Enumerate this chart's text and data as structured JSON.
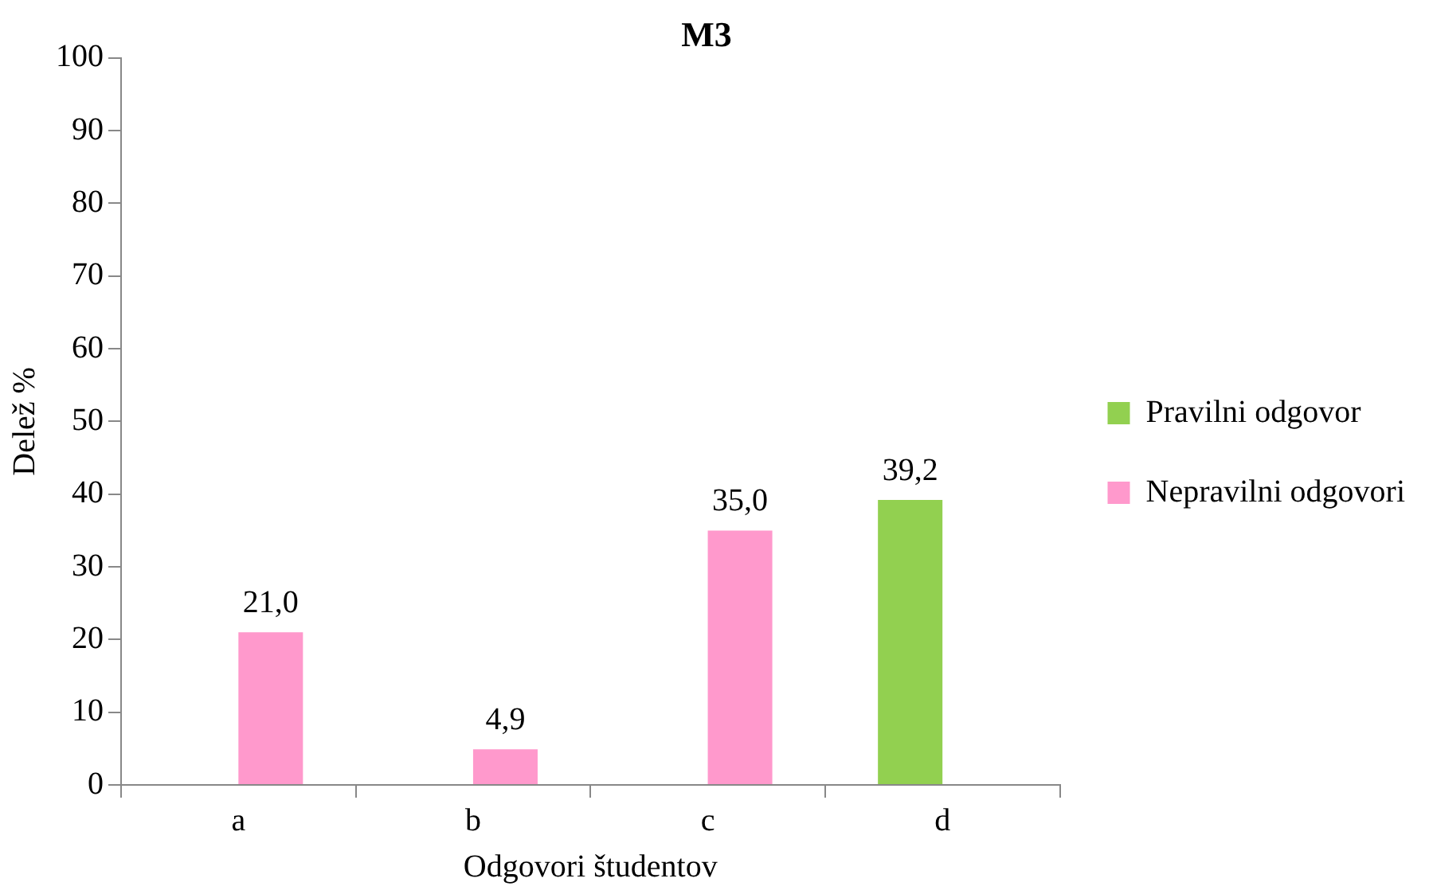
{
  "chart_data": {
    "type": "bar",
    "title": "M3",
    "xlabel": "Odgovori študentov",
    "ylabel": "Delež %",
    "categories": [
      "a",
      "b",
      "c",
      "d"
    ],
    "series": [
      {
        "name": "Pravilni odgovor",
        "color": "#92d050",
        "values": [
          null,
          null,
          null,
          39.2
        ],
        "value_labels": [
          null,
          null,
          null,
          "39,2"
        ]
      },
      {
        "name": "Nepravilni odgovori",
        "color": "#ff99cc",
        "values": [
          21.0,
          4.9,
          35.0,
          null
        ],
        "value_labels": [
          "21,0",
          "4,9",
          "35,0",
          null
        ]
      }
    ],
    "ylim": [
      0,
      100
    ],
    "yticks": [
      0,
      10,
      20,
      30,
      40,
      50,
      60,
      70,
      80,
      90,
      100
    ],
    "grid": false,
    "legend": "right"
  }
}
